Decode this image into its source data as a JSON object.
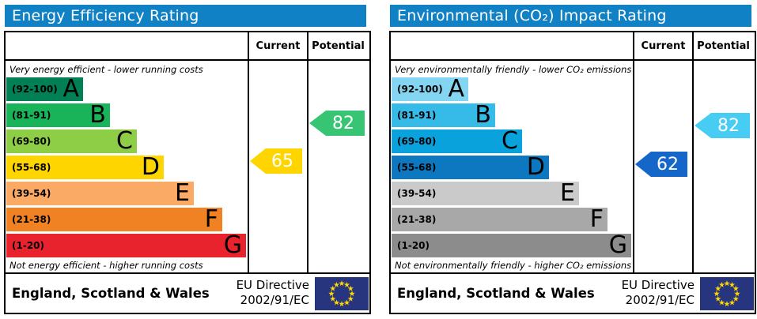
{
  "colors": {
    "header_bg": "#1181c5",
    "border": "#000000",
    "flag_bg": "#27357e",
    "flag_star": "#ffd700"
  },
  "chart_data": [
    {
      "type": "bar",
      "title": "Energy Efficiency Rating",
      "top_note": "Very energy efficient - lower running costs",
      "bottom_note": "Not energy efficient - higher running costs",
      "col_current": "Current",
      "col_potential": "Potential",
      "categories": [
        "A",
        "B",
        "C",
        "D",
        "E",
        "F",
        "G"
      ],
      "bands": [
        {
          "range": "(92-100)",
          "letter": "A",
          "color": "#008054",
          "width_css": "97px"
        },
        {
          "range": "(81-91)",
          "letter": "B",
          "color": "#19b459",
          "width_css": "131px"
        },
        {
          "range": "(69-80)",
          "letter": "C",
          "color": "#8dce46",
          "width_css": "165px"
        },
        {
          "range": "(55-68)",
          "letter": "D",
          "color": "#ffd500",
          "width_css": "199px"
        },
        {
          "range": "(39-54)",
          "letter": "E",
          "color": "#fbaa65",
          "width_css": "237px"
        },
        {
          "range": "(21-38)",
          "letter": "F",
          "color": "#f08223",
          "width_css": "273px"
        },
        {
          "range": "(1-20)",
          "letter": "G",
          "color": "#e9232d",
          "width_css": "303px"
        }
      ],
      "current": {
        "value": 65,
        "band": "D",
        "color": "#ffd500",
        "top_css": "147px"
      },
      "potential": {
        "value": 82,
        "band": "B",
        "color": "#38c573",
        "top_css": "99px"
      },
      "footer_region": "England, Scotland & Wales",
      "footer_directive_1": "EU Directive",
      "footer_directive_2": "2002/91/EC"
    },
    {
      "type": "bar",
      "title": "Environmental (CO₂) Impact Rating",
      "top_note": "Very environmentally friendly - lower CO₂ emissions",
      "bottom_note": "Not environmentally friendly - higher CO₂ emissions",
      "col_current": "Current",
      "col_potential": "Potential",
      "categories": [
        "A",
        "B",
        "C",
        "D",
        "E",
        "F",
        "G"
      ],
      "bands": [
        {
          "range": "(92-100)",
          "letter": "A",
          "color": "#84d5f1",
          "width_css": "97px"
        },
        {
          "range": "(81-91)",
          "letter": "B",
          "color": "#36bbe9",
          "width_css": "131px"
        },
        {
          "range": "(69-80)",
          "letter": "C",
          "color": "#0aa2dc",
          "width_css": "165px"
        },
        {
          "range": "(55-68)",
          "letter": "D",
          "color": "#0d77c0",
          "width_css": "199px"
        },
        {
          "range": "(39-54)",
          "letter": "E",
          "color": "#cacaca",
          "width_css": "237px"
        },
        {
          "range": "(21-38)",
          "letter": "F",
          "color": "#a8a8a8",
          "width_css": "273px"
        },
        {
          "range": "(1-20)",
          "letter": "G",
          "color": "#8c8c8c",
          "width_css": "303px"
        }
      ],
      "current": {
        "value": 62,
        "band": "D",
        "color": "#1566c9",
        "top_css": "151px"
      },
      "potential": {
        "value": 82,
        "band": "B",
        "color": "#47ccf3",
        "top_css": "102px"
      },
      "footer_region": "England, Scotland & Wales",
      "footer_directive_1": "EU Directive",
      "footer_directive_2": "2002/91/EC"
    }
  ]
}
